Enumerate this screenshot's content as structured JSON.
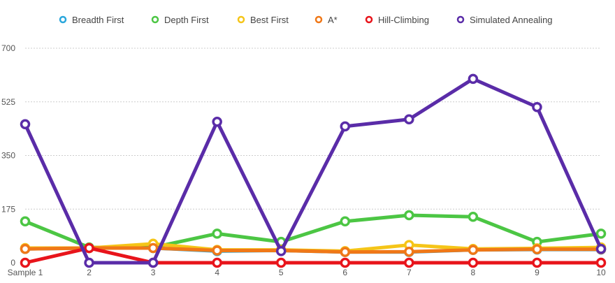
{
  "chart_data": {
    "type": "line",
    "title": "",
    "xlabel": "",
    "ylabel": "",
    "categories": [
      "Sample 1",
      "2",
      "3",
      "4",
      "5",
      "6",
      "7",
      "8",
      "9",
      "10"
    ],
    "ylim": [
      0,
      700
    ],
    "yticks": [
      "0",
      "175",
      "350",
      "525",
      "700"
    ],
    "grid": true,
    "legend_position": "top",
    "series": [
      {
        "name": "Breadth First",
        "color": "#2aa7dc",
        "values": [
          45,
          48,
          48,
          38,
          40,
          35,
          35,
          42,
          43,
          43
        ]
      },
      {
        "name": "Depth First",
        "color": "#4cc644",
        "values": [
          135,
          50,
          50,
          95,
          68,
          135,
          155,
          150,
          68,
          95
        ]
      },
      {
        "name": "Best First",
        "color": "#f5c518",
        "values": [
          48,
          48,
          62,
          42,
          42,
          38,
          58,
          45,
          47,
          50
        ]
      },
      {
        "name": "A*",
        "color": "#f07818",
        "values": [
          45,
          48,
          48,
          40,
          40,
          35,
          36,
          42,
          44,
          44
        ]
      },
      {
        "name": "Hill-Climbing",
        "color": "#e8141b",
        "values": [
          0,
          48,
          0,
          0,
          0,
          0,
          0,
          0,
          0,
          0
        ]
      },
      {
        "name": "Simulated Annealing",
        "color": "#5a2ca8",
        "values": [
          452,
          0,
          0,
          460,
          38,
          445,
          468,
          600,
          508,
          45
        ]
      }
    ]
  }
}
